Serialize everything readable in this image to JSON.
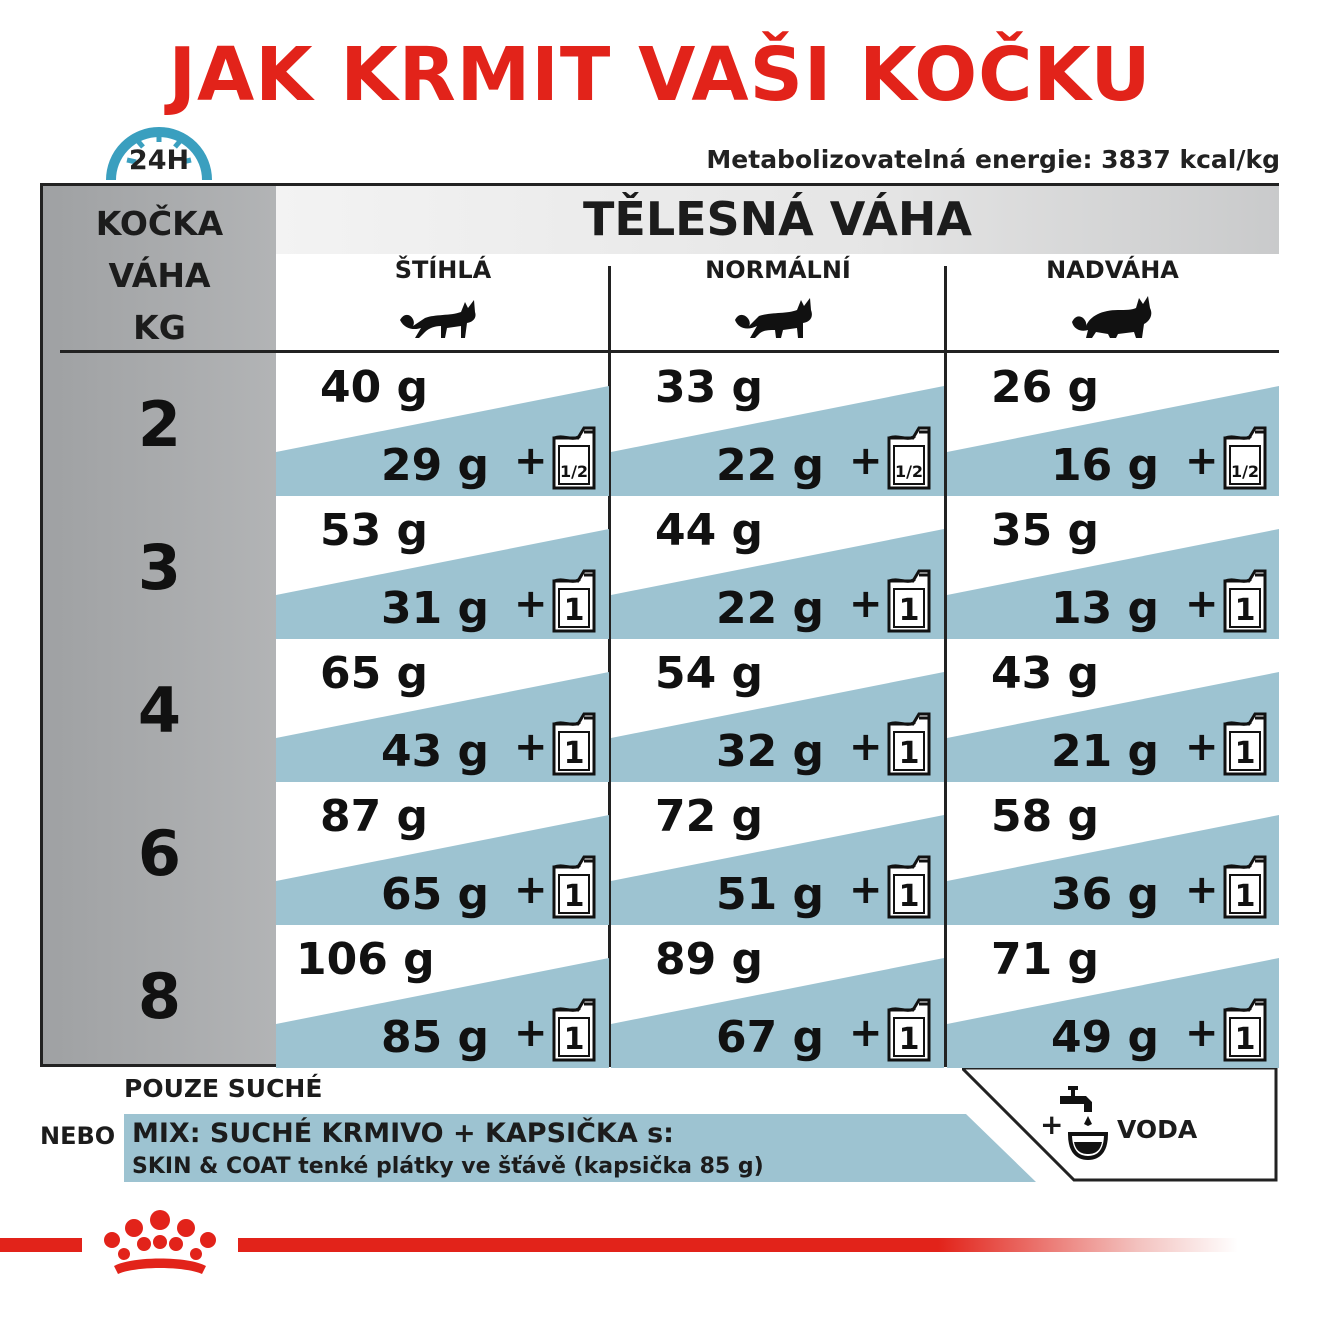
{
  "title": "JAK KRMIT VAŠI KOČKU",
  "energy": "Metabolizovatelná energie: 3837 kcal/kg",
  "clock_label": "24H",
  "table": {
    "left_header": [
      "KOČKA",
      "VÁHA",
      "KG"
    ],
    "header_title": "TĚLESNÁ VÁHA",
    "categories": [
      "ŠTÍHLÁ",
      "NORMÁLNÍ",
      "NADVÁHA"
    ],
    "plus_sign": "+",
    "rows": [
      {
        "kg": "2",
        "cells": [
          {
            "dry": "40 g",
            "mix": "29 g",
            "pouch": "1/2"
          },
          {
            "dry": "33 g",
            "mix": "22 g",
            "pouch": "1/2"
          },
          {
            "dry": "26 g",
            "mix": "16 g",
            "pouch": "1/2"
          }
        ]
      },
      {
        "kg": "3",
        "cells": [
          {
            "dry": "53 g",
            "mix": "31 g",
            "pouch": "1"
          },
          {
            "dry": "44 g",
            "mix": "22 g",
            "pouch": "1"
          },
          {
            "dry": "35 g",
            "mix": "13 g",
            "pouch": "1"
          }
        ]
      },
      {
        "kg": "4",
        "cells": [
          {
            "dry": "65 g",
            "mix": "43 g",
            "pouch": "1"
          },
          {
            "dry": "54 g",
            "mix": "32 g",
            "pouch": "1"
          },
          {
            "dry": "43 g",
            "mix": "21 g",
            "pouch": "1"
          }
        ]
      },
      {
        "kg": "6",
        "cells": [
          {
            "dry": "87 g",
            "mix": "65 g",
            "pouch": "1"
          },
          {
            "dry": "72 g",
            "mix": "51 g",
            "pouch": "1"
          },
          {
            "dry": "58 g",
            "mix": "36 g",
            "pouch": "1"
          }
        ]
      },
      {
        "kg": "8",
        "cells": [
          {
            "dry": "106 g",
            "mix": "85 g",
            "pouch": "1"
          },
          {
            "dry": "89 g",
            "mix": "67 g",
            "pouch": "1"
          },
          {
            "dry": "71 g",
            "mix": "49 g",
            "pouch": "1"
          }
        ]
      }
    ]
  },
  "legend": {
    "dry_only": "POUZE SUCHÉ",
    "or": "NEBO",
    "mix_title": "MIX: SUCHÉ KRMIVO + KAPSIČKA s:",
    "mix_detail": "SKIN & COAT tenké plátky ve šťávě (kapsička 85 g)",
    "water_plus": "+",
    "water": "VODA"
  },
  "colors": {
    "brand_red": "#e2231a",
    "band_blue": "#9dc3d1",
    "clock_blue": "#3a9fbf"
  },
  "icons": [
    "clock-icon",
    "cat-slim-icon",
    "cat-normal-icon",
    "cat-overweight-icon",
    "pouch-icon",
    "water-tap-icon",
    "royal-canin-crown-logo"
  ]
}
